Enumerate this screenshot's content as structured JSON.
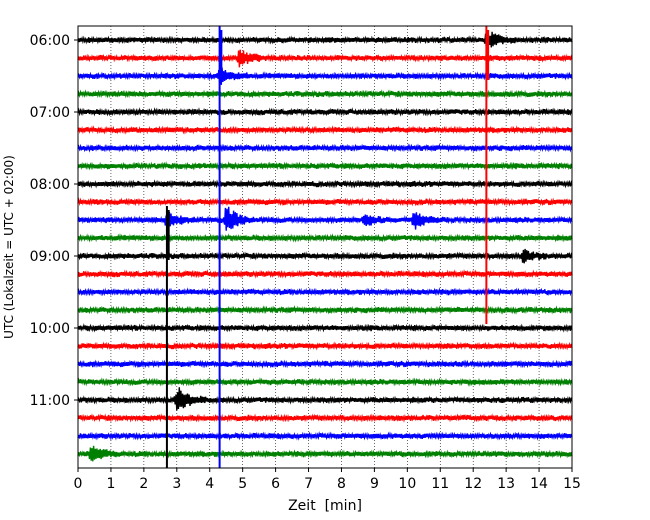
{
  "chart_data": {
    "type": "line",
    "title": "",
    "xlabel": "Zeit  [min]",
    "ylabel": "UTC (Lokalzeit = UTC + 02:00)",
    "xlim": [
      0,
      15
    ],
    "x_ticks": [
      "0",
      "1",
      "2",
      "3",
      "4",
      "5",
      "6",
      "7",
      "8",
      "9",
      "10",
      "11",
      "12",
      "13",
      "14",
      "15"
    ],
    "y_ticks": [
      {
        "label": "06:00",
        "row": 0
      },
      {
        "label": "07:00",
        "row": 4
      },
      {
        "label": "08:00",
        "row": 8
      },
      {
        "label": "09:00",
        "row": 12
      },
      {
        "label": "10:00",
        "row": 16
      },
      {
        "label": "11:00",
        "row": 20
      }
    ],
    "grid": "vertical dotted at each minute",
    "trace_minutes": 15,
    "rows": [
      {
        "start": "06:00",
        "color": "#000000"
      },
      {
        "start": "06:15",
        "color": "#ff0000"
      },
      {
        "start": "06:30",
        "color": "#0000ff"
      },
      {
        "start": "06:45",
        "color": "#008000"
      },
      {
        "start": "07:00",
        "color": "#000000"
      },
      {
        "start": "07:15",
        "color": "#ff0000"
      },
      {
        "start": "07:30",
        "color": "#0000ff"
      },
      {
        "start": "07:45",
        "color": "#008000"
      },
      {
        "start": "08:00",
        "color": "#000000"
      },
      {
        "start": "08:15",
        "color": "#ff0000"
      },
      {
        "start": "08:30",
        "color": "#0000ff"
      },
      {
        "start": "08:45",
        "color": "#008000"
      },
      {
        "start": "09:00",
        "color": "#000000"
      },
      {
        "start": "09:15",
        "color": "#ff0000"
      },
      {
        "start": "09:30",
        "color": "#0000ff"
      },
      {
        "start": "09:45",
        "color": "#008000"
      },
      {
        "start": "10:00",
        "color": "#000000"
      },
      {
        "start": "10:15",
        "color": "#ff0000"
      },
      {
        "start": "10:30",
        "color": "#0000ff"
      },
      {
        "start": "10:45",
        "color": "#008000"
      },
      {
        "start": "11:00",
        "color": "#000000"
      },
      {
        "start": "11:15",
        "color": "#ff0000"
      },
      {
        "start": "11:30",
        "color": "#0000ff"
      },
      {
        "start": "11:45",
        "color": "#008000"
      }
    ],
    "events": [
      {
        "row": 0,
        "minute": 12.4,
        "color": "#ff0000",
        "amplitude": "clipped",
        "vertical_extent_rows": [
          0,
          15
        ]
      },
      {
        "row": 1,
        "minute": 4.9,
        "color": "#ff0000",
        "amplitude": "medium"
      },
      {
        "row": 2,
        "minute": 4.3,
        "color": "#0000ff",
        "amplitude": "clipped",
        "vertical_extent_rows": [
          0,
          23
        ]
      },
      {
        "row": 10,
        "minute": 4.5,
        "color": "#0000ff",
        "amplitude": "large"
      },
      {
        "row": 10,
        "minute": 8.7,
        "color": "#0000ff",
        "amplitude": "small"
      },
      {
        "row": 10,
        "minute": 10.2,
        "color": "#0000ff",
        "amplitude": "medium"
      },
      {
        "row": 12,
        "minute": 13.5,
        "color": "#000000",
        "amplitude": "small"
      },
      {
        "row": 10,
        "minute": 2.7,
        "color": "#000000",
        "amplitude": "clipped",
        "vertical_extent_rows": [
          10,
          23
        ]
      },
      {
        "row": 20,
        "minute": 3.0,
        "color": "#000000",
        "amplitude": "large"
      },
      {
        "row": 23,
        "minute": 0.4,
        "color": "#008000",
        "amplitude": "medium"
      }
    ]
  }
}
